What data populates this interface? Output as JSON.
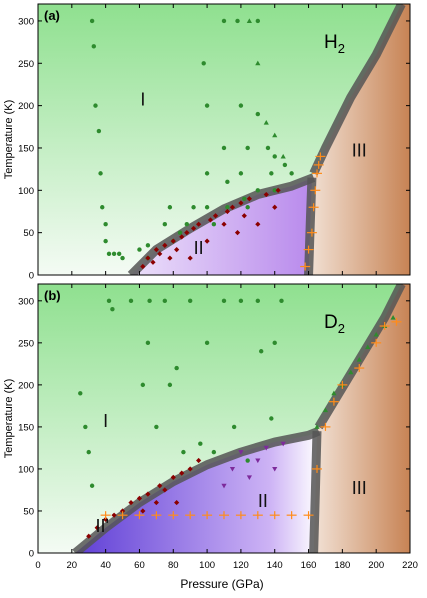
{
  "figure": {
    "xlabel": "Pressure (GPa)",
    "xticks": [
      0,
      20,
      40,
      60,
      80,
      100,
      120,
      140,
      160,
      180,
      200,
      220
    ]
  },
  "colors": {
    "phase_I": "#9be39b",
    "phase_II": "#c99af0",
    "phase_II_deep": "#5f3fd6",
    "phase_III": "#c98a5a",
    "boundary": "#555555",
    "green_points": "#2e8b2e",
    "red_points": "#8b0000",
    "orange_points": "#ff8c1a",
    "purple_points": "#7d2a9b"
  },
  "chart_data": [
    {
      "type": "scatter",
      "panel": "(a)",
      "species": "H",
      "species_sub": "2",
      "ylabel": "Temperature (K)",
      "xlim": [
        0,
        220
      ],
      "ylim": [
        0,
        320
      ],
      "yticks": [
        0,
        50,
        100,
        150,
        200,
        250,
        300
      ],
      "phase_labels": [
        "I",
        "II",
        "III"
      ],
      "boundaries": {
        "I_II": [
          [
            55,
            0
          ],
          [
            70,
            30
          ],
          [
            90,
            55
          ],
          [
            110,
            78
          ],
          [
            130,
            95
          ],
          [
            150,
            105
          ],
          [
            163,
            115
          ]
        ],
        "I_III": [
          [
            163,
            120
          ],
          [
            170,
            150
          ],
          [
            185,
            210
          ],
          [
            200,
            260
          ],
          [
            215,
            320
          ]
        ],
        "II_III": [
          [
            160,
            0
          ],
          [
            161,
            60
          ],
          [
            162,
            115
          ]
        ]
      },
      "series": [
        {
          "name": "",
          "marker": "circle",
          "color": "green",
          "x": [
            32,
            33,
            34,
            36,
            37,
            38,
            40,
            40,
            42,
            45,
            48,
            50,
            60,
            65,
            65,
            75,
            78,
            80,
            84,
            88,
            92,
            98,
            100,
            100,
            100,
            104,
            110,
            110,
            112,
            112,
            118,
            120,
            120,
            122,
            124,
            124,
            130,
            130,
            130,
            136,
            138,
            140,
            140,
            146,
            150
          ],
          "y": [
            300,
            270,
            200,
            170,
            120,
            80,
            60,
            40,
            25,
            25,
            25,
            20,
            30,
            35,
            20,
            60,
            80,
            40,
            50,
            60,
            80,
            250,
            200,
            120,
            80,
            60,
            300,
            150,
            110,
            80,
            300,
            200,
            120,
            90,
            150,
            80,
            300,
            190,
            100,
            150,
            120,
            140,
            100,
            130,
            120
          ]
        },
        {
          "name": "",
          "marker": "diamond",
          "color": "red",
          "x": [
            62,
            65,
            68,
            70,
            72,
            75,
            78,
            80,
            82,
            85,
            88,
            90,
            92,
            95,
            100,
            102,
            105,
            110,
            112,
            115,
            118,
            120,
            122,
            125,
            130,
            135,
            140,
            142
          ],
          "y": [
            10,
            20,
            15,
            30,
            25,
            35,
            20,
            40,
            30,
            45,
            50,
            20,
            55,
            60,
            40,
            65,
            70,
            60,
            75,
            80,
            50,
            85,
            70,
            90,
            60,
            95,
            80,
            100
          ]
        },
        {
          "name": "",
          "marker": "triangle",
          "color": "green",
          "x": [
            125,
            130,
            135,
            140,
            145
          ],
          "y": [
            300,
            250,
            180,
            165,
            140
          ]
        },
        {
          "name": "",
          "marker": "cross",
          "color": "orange",
          "x": [
            158,
            160,
            162,
            163,
            164,
            165,
            166,
            167
          ],
          "y": [
            10,
            30,
            50,
            80,
            100,
            120,
            130,
            140
          ]
        }
      ]
    },
    {
      "type": "scatter",
      "panel": "(b)",
      "species": "D",
      "species_sub": "2",
      "ylabel": "Temperature (K)",
      "xlim": [
        0,
        220
      ],
      "ylim": [
        0,
        320
      ],
      "yticks": [
        0,
        50,
        100,
        150,
        200,
        250,
        300
      ],
      "phase_labels": [
        "I",
        "II'",
        "II",
        "III"
      ],
      "boundaries": {
        "I_II": [
          [
            22,
            0
          ],
          [
            40,
            30
          ],
          [
            60,
            60
          ],
          [
            80,
            85
          ],
          [
            100,
            105
          ],
          [
            120,
            120
          ],
          [
            140,
            132
          ],
          [
            160,
            140
          ],
          [
            166,
            145
          ]
        ],
        "I_III": [
          [
            166,
            150
          ],
          [
            175,
            180
          ],
          [
            190,
            230
          ],
          [
            205,
            280
          ],
          [
            215,
            320
          ]
        ],
        "II_III": [
          [
            163,
            0
          ],
          [
            164,
            70
          ],
          [
            165,
            145
          ]
        ]
      },
      "series": [
        {
          "name": "",
          "marker": "circle",
          "color": "green",
          "x": [
            25,
            28,
            30,
            32,
            42,
            44,
            55,
            62,
            65,
            66,
            70,
            75,
            78,
            82,
            86,
            90,
            96,
            100,
            104,
            110,
            116,
            120,
            124,
            130,
            132,
            138,
            140,
            144
          ],
          "y": [
            190,
            150,
            120,
            80,
            300,
            290,
            300,
            200,
            250,
            300,
            150,
            300,
            200,
            220,
            120,
            300,
            130,
            250,
            120,
            300,
            150,
            300,
            110,
            300,
            240,
            160,
            250,
            300
          ]
        },
        {
          "name": "",
          "marker": "diamond",
          "color": "red",
          "x": [
            30,
            35,
            40,
            45,
            50,
            55,
            60,
            62,
            65,
            70,
            72,
            75,
            80,
            82,
            85,
            90,
            95
          ],
          "y": [
            20,
            30,
            40,
            45,
            50,
            60,
            65,
            50,
            70,
            60,
            80,
            75,
            90,
            60,
            95,
            100,
            110
          ]
        },
        {
          "name": "",
          "marker": "down-triangle",
          "color": "purple",
          "x": [
            110,
            115,
            120,
            125,
            130,
            135,
            140,
            145
          ],
          "y": [
            80,
            100,
            120,
            90,
            110,
            125,
            100,
            130
          ]
        },
        {
          "name": "",
          "marker": "triangle",
          "color": "green",
          "x": [
            165,
            170,
            175,
            180,
            185,
            190,
            195,
            200,
            205,
            210
          ],
          "y": [
            150,
            170,
            190,
            200,
            215,
            230,
            245,
            260,
            270,
            280
          ]
        },
        {
          "name": "",
          "marker": "cross",
          "color": "orange",
          "x": [
            40,
            50,
            60,
            70,
            80,
            90,
            100,
            110,
            120,
            130,
            140,
            150,
            160,
            165,
            170,
            175,
            180,
            190,
            200,
            205,
            212
          ],
          "y": [
            45,
            45,
            45,
            45,
            45,
            45,
            45,
            45,
            45,
            45,
            45,
            45,
            45,
            100,
            150,
            180,
            200,
            220,
            250,
            270,
            275
          ]
        }
      ]
    }
  ]
}
